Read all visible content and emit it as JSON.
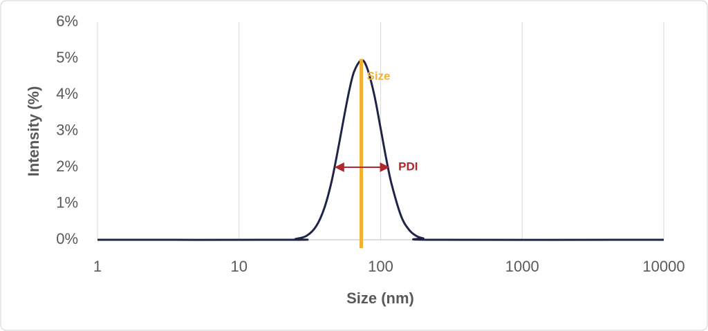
{
  "chart_data": {
    "type": "line",
    "x_label": "Size (nm)",
    "y_label": "Intensity (%)",
    "x_scale": "log",
    "xlim": [
      1,
      10000
    ],
    "xticks": [
      1,
      10,
      100,
      1000,
      10000
    ],
    "ylim": [
      0,
      6
    ],
    "yticks": [
      {
        "value": 0,
        "label": "0%"
      },
      {
        "value": 1,
        "label": "1%"
      },
      {
        "value": 2,
        "label": "2%"
      },
      {
        "value": 3,
        "label": "3%"
      },
      {
        "value": 4,
        "label": "4%"
      },
      {
        "value": 5,
        "label": "5%"
      },
      {
        "value": 6,
        "label": "6%"
      }
    ],
    "grid": true,
    "color": "#1f2447",
    "x": [
      1,
      24,
      25,
      30,
      35,
      40,
      45,
      50,
      55,
      60,
      65,
      73,
      80,
      90,
      100,
      110,
      120,
      140,
      160,
      180,
      200,
      235,
      10000
    ],
    "values": [
      0,
      0,
      0.02,
      0.11,
      0.37,
      0.87,
      1.6,
      2.49,
      3.36,
      4.11,
      4.64,
      4.95,
      4.75,
      4.01,
      3.07,
      2.2,
      1.51,
      0.64,
      0.26,
      0.1,
      0.04,
      0,
      0
    ],
    "annotations": [
      {
        "text": "Size",
        "x": 73,
        "color": "#f2b134"
      },
      {
        "text": "PDI",
        "x_range": [
          48,
          114
        ],
        "y": 2,
        "color": "#b0282c"
      }
    ]
  }
}
